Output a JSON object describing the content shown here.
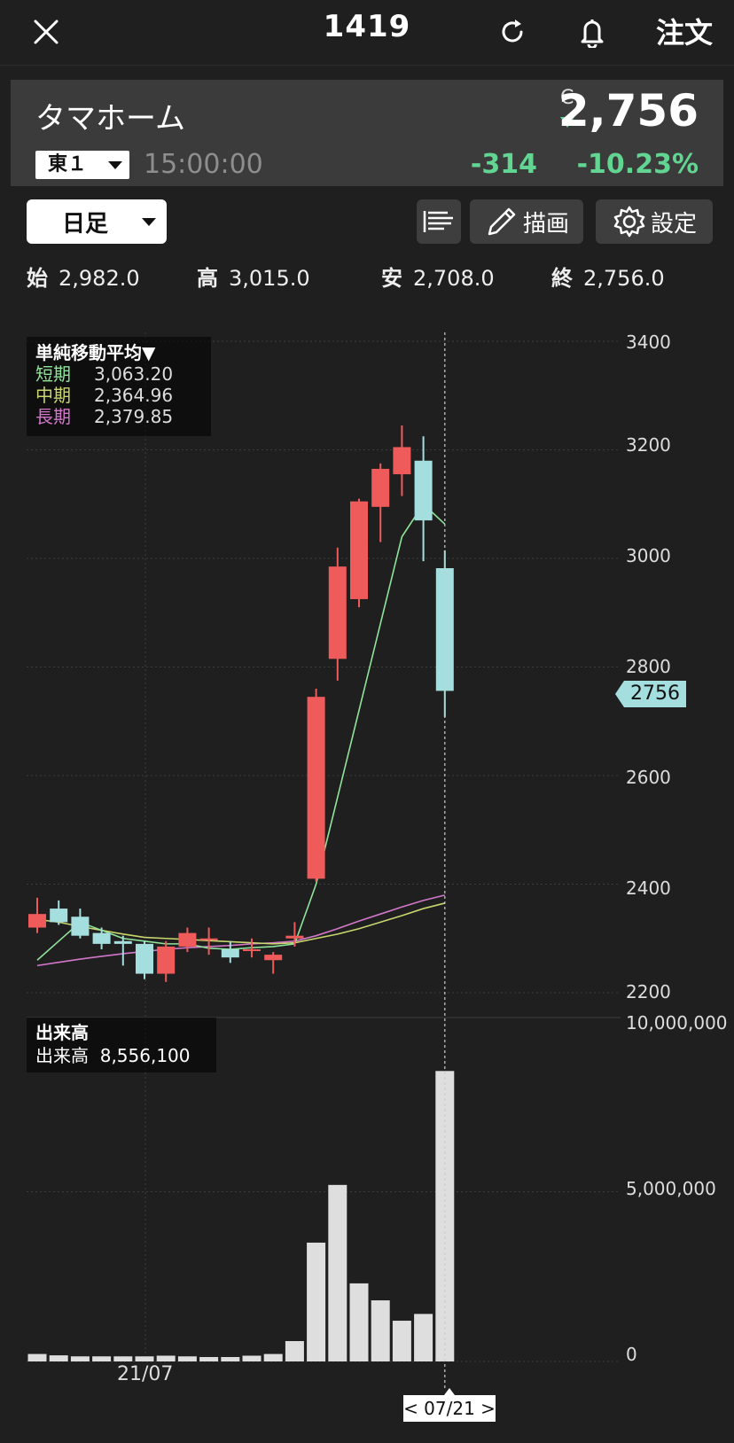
{
  "header": {
    "title": "1419",
    "close_icon": "close-icon",
    "refresh_icon": "refresh-icon",
    "bell_icon": "bell-icon",
    "order_label": "注文"
  },
  "quote": {
    "name": "タマホーム",
    "market": "東１",
    "time": "15:00:00",
    "price_flag": "C",
    "price": "2,756",
    "change": "-314",
    "change_pct": "-10.23%",
    "down_color": "#62d592"
  },
  "toolbar": {
    "period": "日足",
    "draw_label": "描画",
    "settings_label": "設定"
  },
  "ohlc": {
    "open_label": "始",
    "open": "2,982.0",
    "high_label": "高",
    "high": "3,015.0",
    "low_label": "安",
    "low": "2,708.0",
    "close_label": "終",
    "close": "2,756.0"
  },
  "ma_legend": {
    "title": "単純移動平均▼",
    "short_label": "短期",
    "short": "3,063.20",
    "short_color": "#8fe39a",
    "mid_label": "中期",
    "mid": "2,364.96",
    "mid_color": "#c9d66e",
    "long_label": "長期",
    "long": "2,379.85",
    "long_color": "#d277c9"
  },
  "volume_legend": {
    "title": "出来高",
    "label": "出来高",
    "value": "8,556,100"
  },
  "last_price_badge": "2756",
  "x_label": "21/07",
  "date_cursor": "< 07/21 >",
  "chart_data": {
    "type": "candlestick",
    "y_price_ticks": [
      "3400",
      "3200",
      "3000",
      "2800",
      "2600",
      "2400",
      "2200"
    ],
    "y_volume_ticks": [
      "10,000,000",
      "5,000,000",
      "0"
    ],
    "up_color": "#ef5b5b",
    "down_color": "#a5dede",
    "candles": [
      {
        "o": 2320,
        "h": 2375,
        "l": 2310,
        "c": 2345
      },
      {
        "o": 2355,
        "h": 2370,
        "l": 2325,
        "c": 2330
      },
      {
        "o": 2340,
        "h": 2355,
        "l": 2300,
        "c": 2305
      },
      {
        "o": 2310,
        "h": 2320,
        "l": 2280,
        "c": 2290
      },
      {
        "o": 2295,
        "h": 2305,
        "l": 2250,
        "c": 2290
      },
      {
        "o": 2290,
        "h": 2295,
        "l": 2225,
        "c": 2235
      },
      {
        "o": 2235,
        "h": 2295,
        "l": 2220,
        "c": 2285
      },
      {
        "o": 2285,
        "h": 2320,
        "l": 2275,
        "c": 2310
      },
      {
        "o": 2300,
        "h": 2320,
        "l": 2270,
        "c": 2300
      },
      {
        "o": 2280,
        "h": 2295,
        "l": 2255,
        "c": 2265
      },
      {
        "o": 2280,
        "h": 2300,
        "l": 2265,
        "c": 2280
      },
      {
        "o": 2260,
        "h": 2275,
        "l": 2235,
        "c": 2270
      },
      {
        "o": 2300,
        "h": 2330,
        "l": 2285,
        "c": 2305
      },
      {
        "o": 2410,
        "h": 2760,
        "l": 2405,
        "c": 2745
      },
      {
        "o": 2815,
        "h": 3020,
        "l": 2775,
        "c": 2985
      },
      {
        "o": 2925,
        "h": 3110,
        "l": 2910,
        "c": 3105
      },
      {
        "o": 3095,
        "h": 3175,
        "l": 3030,
        "c": 3165
      },
      {
        "o": 3155,
        "h": 3245,
        "l": 3115,
        "c": 3205
      },
      {
        "o": 3180,
        "h": 3225,
        "l": 2995,
        "c": 3070
      },
      {
        "o": 2982,
        "h": 3015,
        "l": 2708,
        "c": 2756
      }
    ],
    "volume": [
      220000,
      180000,
      150000,
      150000,
      150000,
      150000,
      170000,
      150000,
      130000,
      130000,
      170000,
      220000,
      600000,
      3500000,
      5200000,
      2300000,
      1800000,
      1200000,
      1400000,
      8556100
    ],
    "ma_short": [
      2260,
      2295,
      2330,
      2315,
      2300,
      2295,
      2290,
      2290,
      2282,
      2280,
      2283,
      2285,
      2290,
      2400,
      2560,
      2720,
      2880,
      3040,
      3100,
      3063.2
    ],
    "ma_mid": [
      2335,
      2330,
      2322,
      2315,
      2308,
      2302,
      2300,
      2298,
      2296,
      2294,
      2292,
      2290,
      2292,
      2300,
      2308,
      2318,
      2330,
      2342,
      2355,
      2364.96
    ],
    "ma_long": [
      2250,
      2256,
      2262,
      2267,
      2272,
      2276,
      2280,
      2283,
      2285,
      2287,
      2290,
      2292,
      2295,
      2305,
      2318,
      2332,
      2345,
      2358,
      2370,
      2379.85
    ]
  }
}
